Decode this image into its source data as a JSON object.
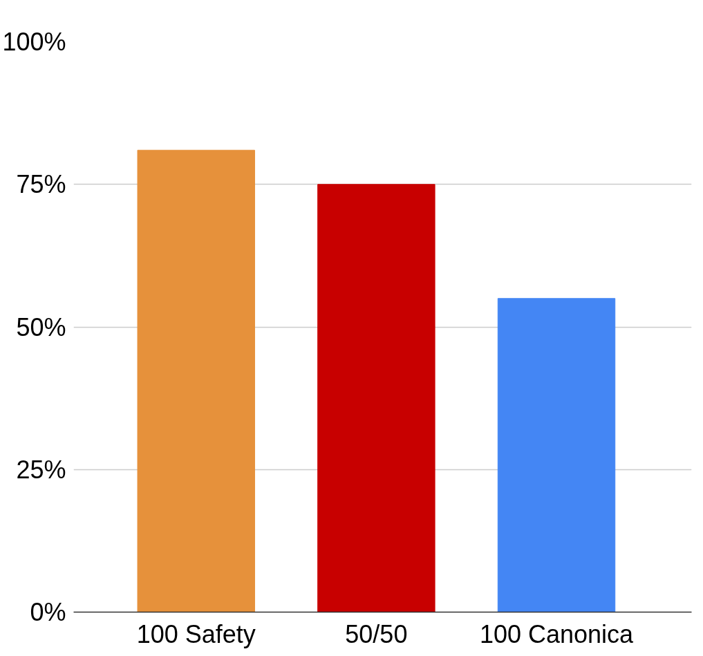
{
  "chart_data": {
    "type": "bar",
    "categories": [
      "100 Safety",
      "50/50",
      "100 Canonica"
    ],
    "values": [
      81,
      75,
      55
    ],
    "colors": [
      "#e6913b",
      "#c80000",
      "#4486f4"
    ],
    "ylim": [
      0,
      100
    ],
    "yticks": [
      {
        "value": 0,
        "label": "0%"
      },
      {
        "value": 25,
        "label": "25%"
      },
      {
        "value": 50,
        "label": "50%"
      },
      {
        "value": 75,
        "label": "75%"
      },
      {
        "value": 100,
        "label": "100%"
      }
    ],
    "grid": "y"
  }
}
